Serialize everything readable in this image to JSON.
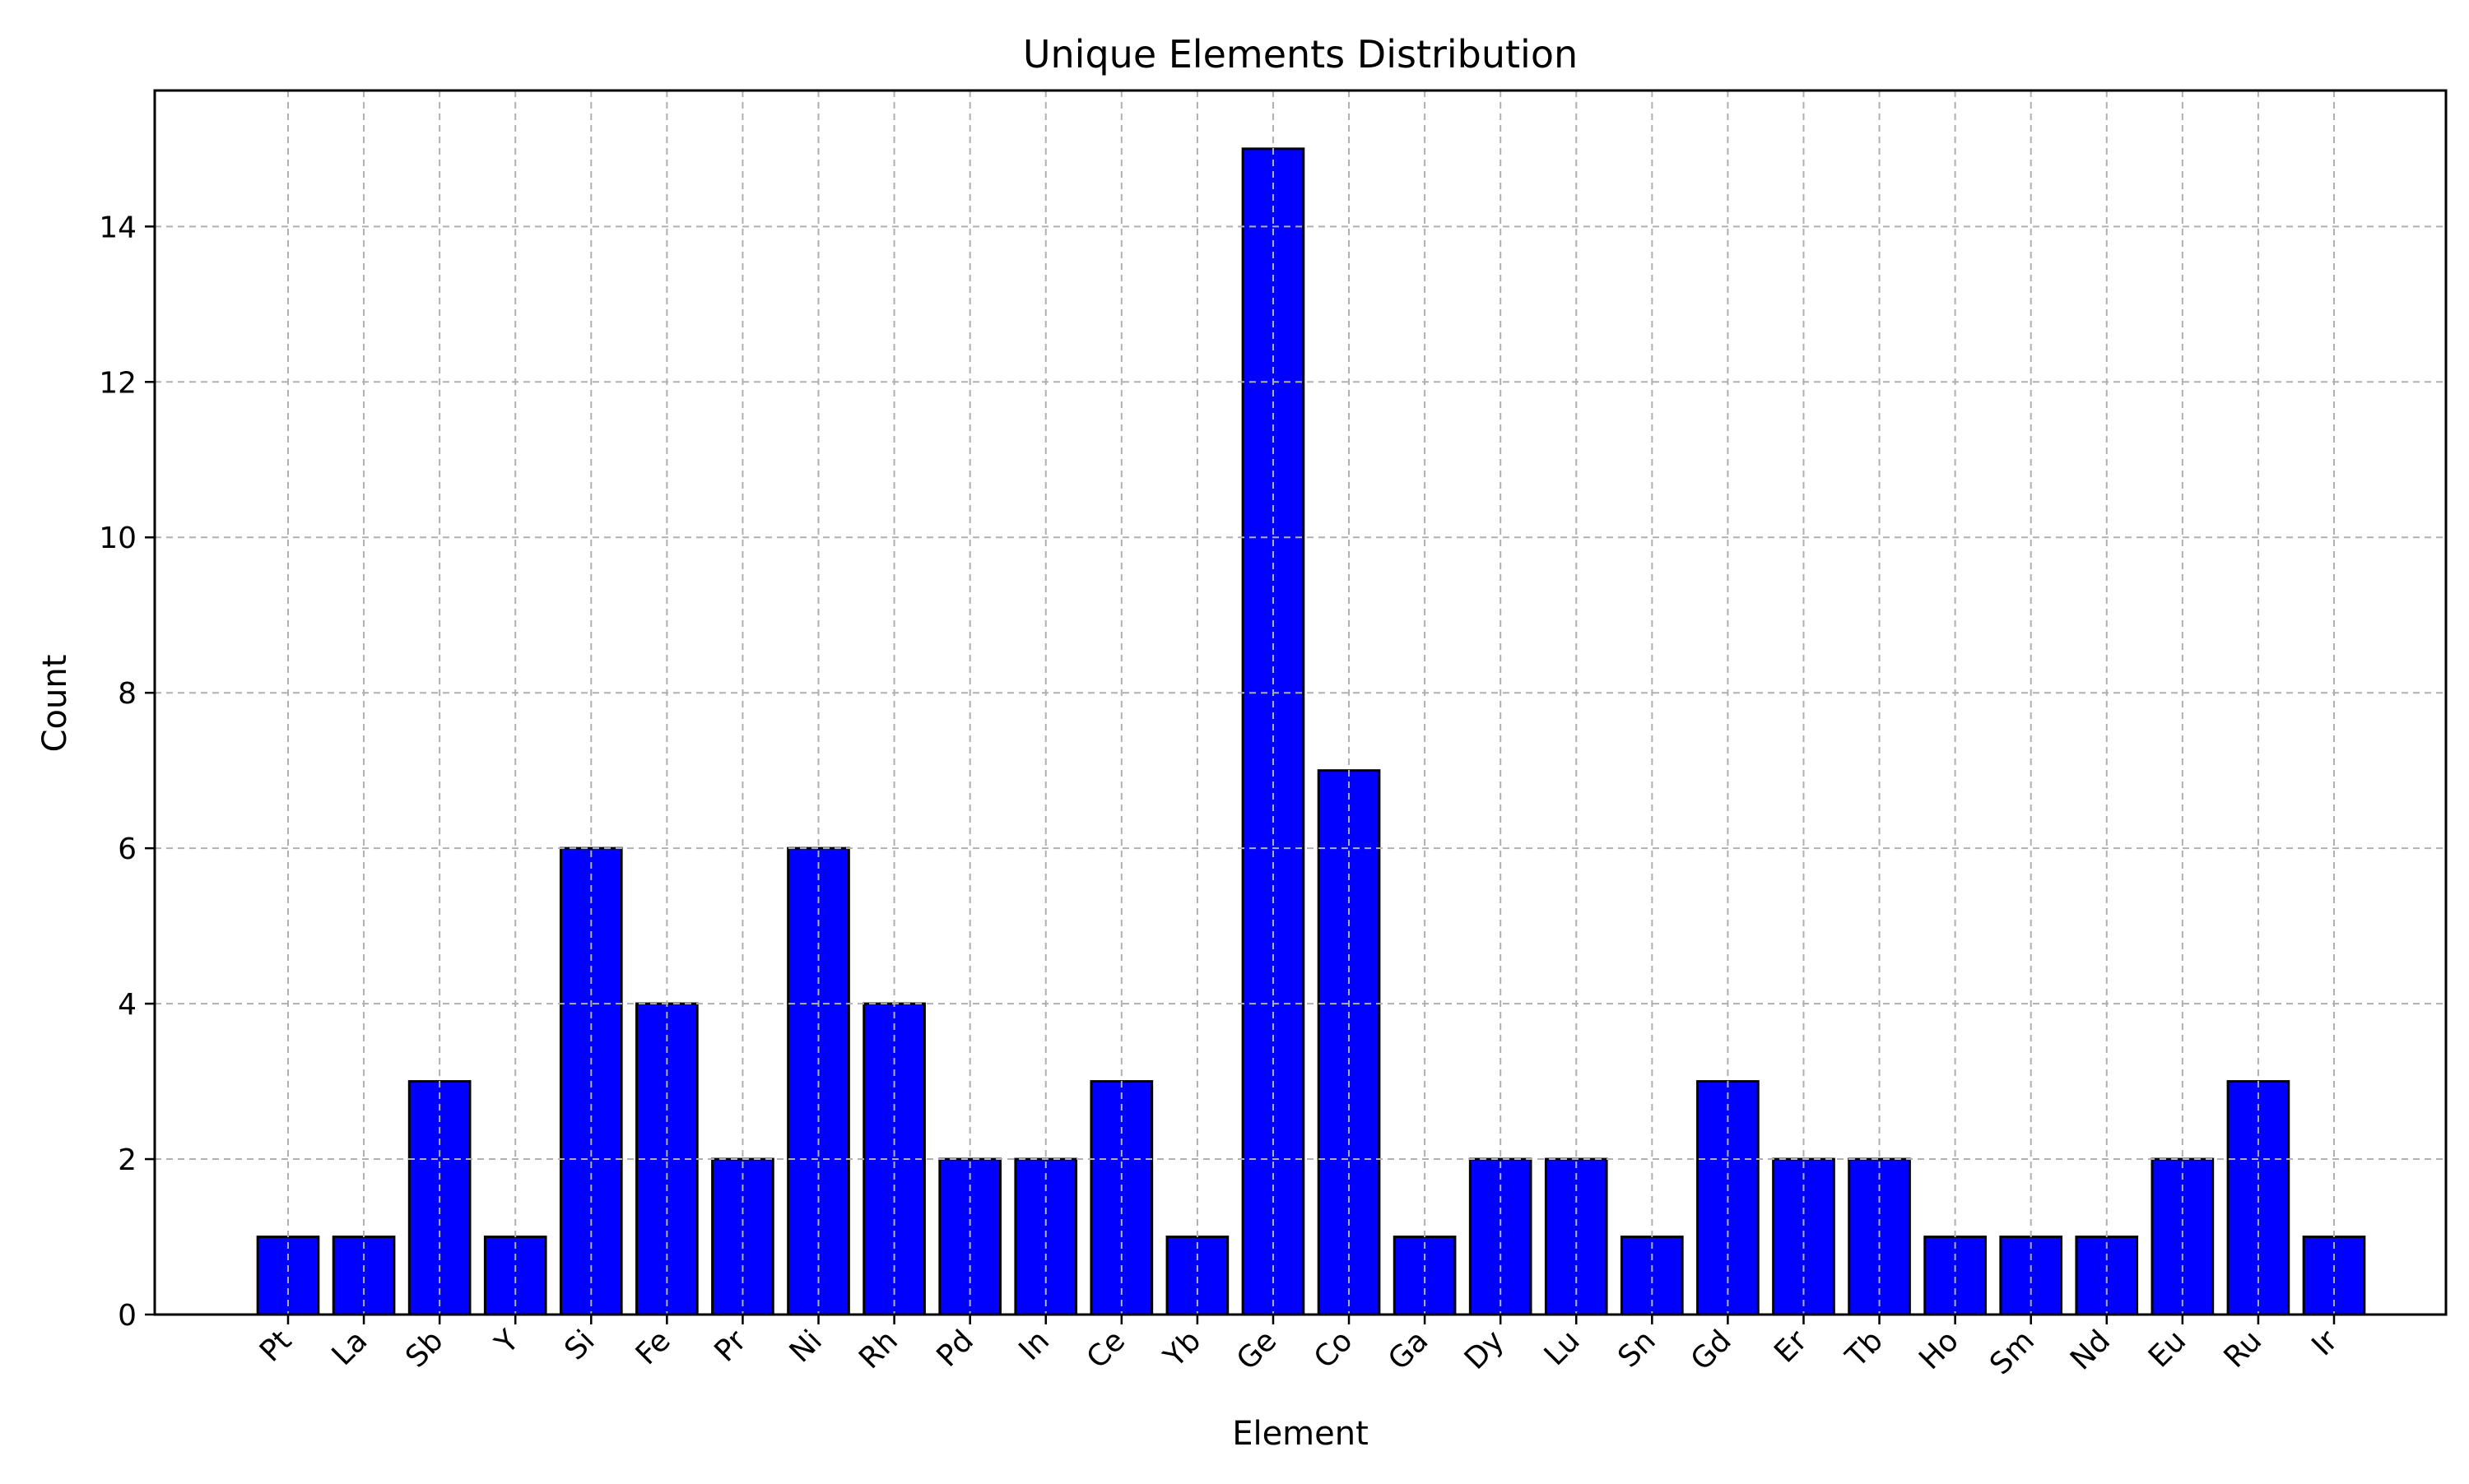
{
  "chart_data": {
    "type": "bar",
    "title": "Unique Elements Distribution",
    "xlabel": "Element",
    "ylabel": "Count",
    "categories": [
      "Pt",
      "La",
      "Sb",
      "Y",
      "Si",
      "Fe",
      "Pr",
      "Ni",
      "Rh",
      "Pd",
      "In",
      "Ce",
      "Yb",
      "Ge",
      "Co",
      "Ga",
      "Dy",
      "Lu",
      "Sn",
      "Gd",
      "Er",
      "Tb",
      "Ho",
      "Sm",
      "Nd",
      "Eu",
      "Ru",
      "Ir"
    ],
    "values": [
      1,
      1,
      3,
      1,
      6,
      4,
      2,
      6,
      4,
      2,
      2,
      3,
      1,
      15,
      7,
      1,
      2,
      2,
      1,
      3,
      2,
      2,
      1,
      1,
      1,
      2,
      3,
      1
    ],
    "ylim": [
      0,
      15.75
    ],
    "yticks": [
      0,
      2,
      4,
      6,
      8,
      10,
      12,
      14
    ],
    "grid": true,
    "bar_color": "#0000ff",
    "edge_color": "#000000",
    "xtick_rotation": 45
  }
}
